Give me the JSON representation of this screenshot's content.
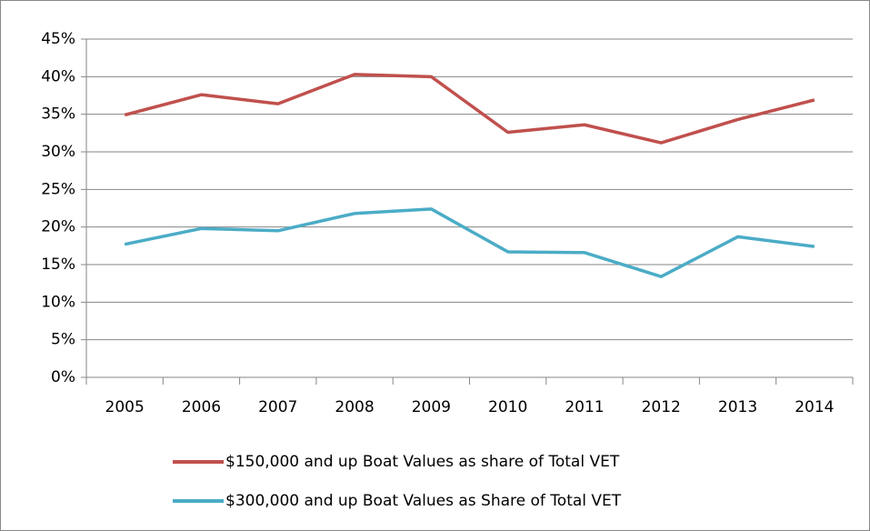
{
  "chart_data": {
    "type": "line",
    "categories": [
      "2005",
      "2006",
      "2007",
      "2008",
      "2009",
      "2010",
      "2011",
      "2012",
      "2013",
      "2014"
    ],
    "series": [
      {
        "name": "$150,000 and up Boat Values as share of Total VET",
        "color": "#c0504d",
        "values": [
          34.9,
          37.6,
          36.4,
          40.3,
          40.0,
          32.6,
          33.6,
          31.2,
          34.3,
          36.9
        ]
      },
      {
        "name": "$300,000 and up Boat Values as Share of Total VET",
        "color": "#4bacc6",
        "values": [
          17.7,
          19.8,
          19.5,
          21.8,
          22.4,
          16.7,
          16.6,
          13.4,
          18.7,
          17.4
        ]
      }
    ],
    "ylim": [
      0,
      45
    ],
    "yticks": [
      {
        "value": 0,
        "label": "0%"
      },
      {
        "value": 5,
        "label": "5%"
      },
      {
        "value": 10,
        "label": "10%"
      },
      {
        "value": 15,
        "label": "15%"
      },
      {
        "value": 20,
        "label": "20%"
      },
      {
        "value": 25,
        "label": "25%"
      },
      {
        "value": 30,
        "label": "30%"
      },
      {
        "value": 35,
        "label": "35%"
      },
      {
        "value": 40,
        "label": "40%"
      },
      {
        "value": 45,
        "label": "45%"
      }
    ],
    "grid": true,
    "legend": "bottom"
  }
}
